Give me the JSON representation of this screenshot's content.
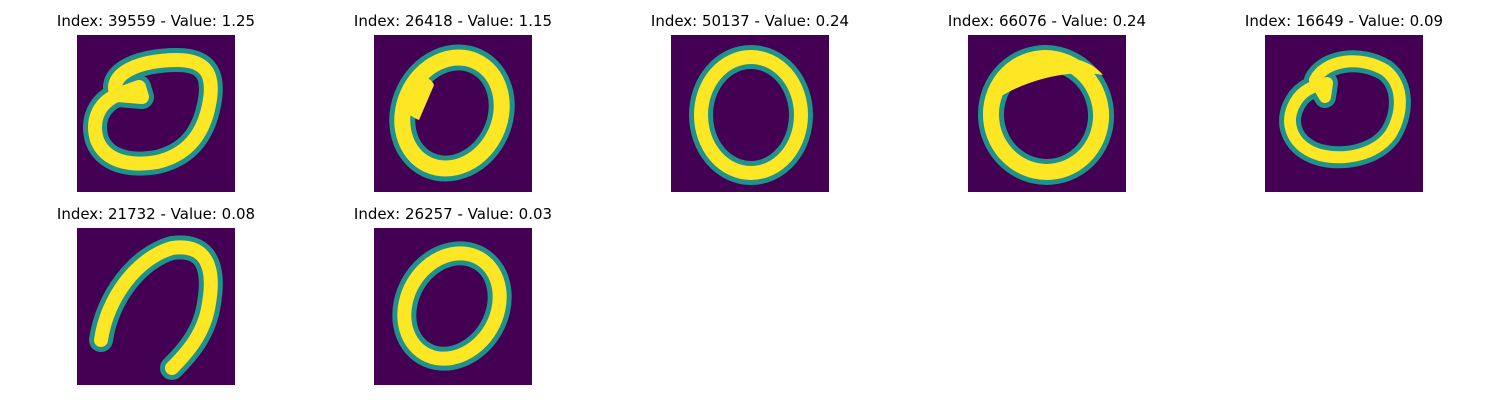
{
  "panels": [
    {
      "title": "Index: 39559 - Value: 1.25"
    },
    {
      "title": "Index: 26418 - Value: 1.15"
    },
    {
      "title": "Index: 50137 - Value: 0.24"
    },
    {
      "title": "Index: 66076 - Value: 0.24"
    },
    {
      "title": "Index: 16649 - Value: 0.09"
    },
    {
      "title": "Index: 21732 - Value: 0.08"
    },
    {
      "title": "Index: 26257 - Value: 0.03"
    }
  ],
  "colors": {
    "background": "#440154",
    "edge": "#21918c",
    "stroke": "#fde725"
  }
}
